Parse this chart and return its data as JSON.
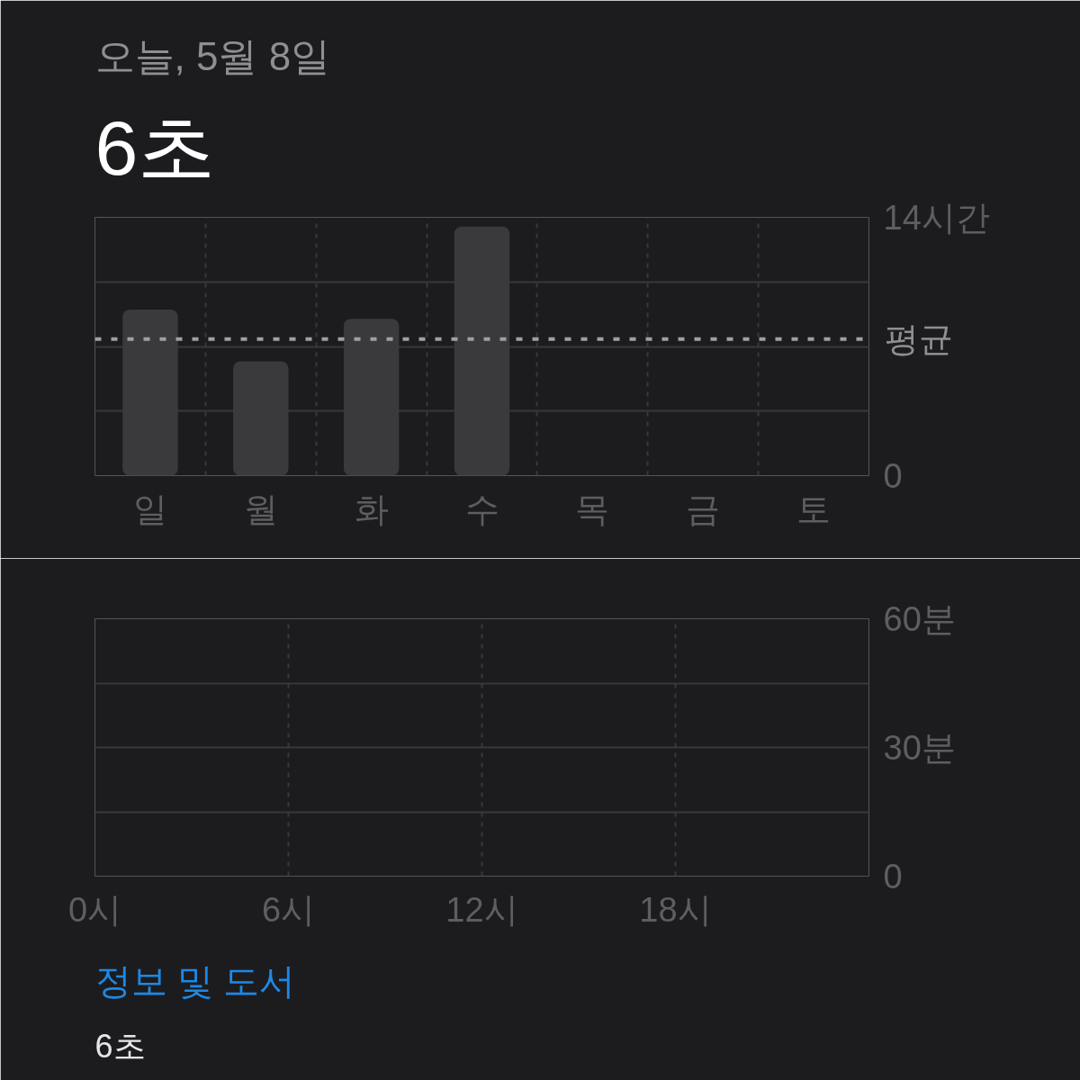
{
  "chart_data": [
    {
      "type": "bar",
      "subtitle": "오늘, 5월 8일",
      "title": "6초",
      "categories": [
        "일",
        "월",
        "화",
        "수",
        "목",
        "금",
        "토"
      ],
      "values": [
        9.0,
        6.2,
        8.5,
        13.5,
        null,
        null,
        null
      ],
      "color": "#3a3a3c",
      "ylim": [
        0,
        14
      ],
      "yticks": [
        0,
        {
          "value": 3.5,
          "label": null
        },
        {
          "value": 7,
          "label": null
        },
        {
          "value": 10.5,
          "label": null
        },
        {
          "value": 14,
          "label": "14시간"
        }
      ],
      "grid": true,
      "ref_lines": [
        {
          "axis": "y",
          "value": 7.4,
          "label": "평균",
          "color": "#a0a0a4",
          "line_style": "dotted"
        }
      ]
    },
    {
      "type": "bar",
      "xlim": [
        0,
        24
      ],
      "xticks": [
        {
          "value": 0,
          "label": "0시"
        },
        {
          "value": 6,
          "label": "6시"
        },
        {
          "value": 12,
          "label": "12시"
        },
        {
          "value": 18,
          "label": "18시"
        },
        {
          "value": 24,
          "label": null
        }
      ],
      "ylim": [
        0,
        60
      ],
      "yticks": [
        0,
        {
          "value": 15,
          "label": null
        },
        {
          "value": 30,
          "label": "30분"
        },
        {
          "value": 45,
          "label": null
        },
        {
          "value": 60,
          "label": "60분"
        }
      ],
      "grid": true,
      "annotations": [
        "정보 및 도서",
        "6초"
      ]
    }
  ]
}
